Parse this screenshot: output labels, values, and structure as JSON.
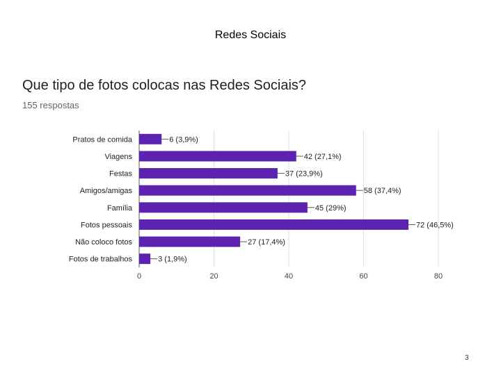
{
  "slide": {
    "title": "Redes Sociais",
    "page_number": "3"
  },
  "question": {
    "text": "Que tipo de fotos colocas nas Redes Sociais?",
    "responses": "155 respostas"
  },
  "colors": {
    "bar": "#5b23b0",
    "grid": "#e0e0e0",
    "axis": "#555555"
  },
  "chart_data": {
    "type": "bar",
    "orientation": "horizontal",
    "categories": [
      "Pratos de comida",
      "Viagens",
      "Festas",
      "Amigos/amigas",
      "Família",
      "Fotos pessoais",
      "Não coloco fotos",
      "Fotos de trabalhos"
    ],
    "values": [
      6,
      42,
      37,
      58,
      45,
      72,
      27,
      3
    ],
    "data_labels": [
      "6 (3,9%)",
      "42 (27,1%)",
      "37 (23,9%)",
      "58 (37,4%)",
      "45 (29%)",
      "72 (46,5%)",
      "27 (17,4%)",
      "3 (1,9%)"
    ],
    "xlim": [
      0,
      80
    ],
    "xticks": [
      0,
      20,
      40,
      60,
      80
    ],
    "grid": true
  }
}
